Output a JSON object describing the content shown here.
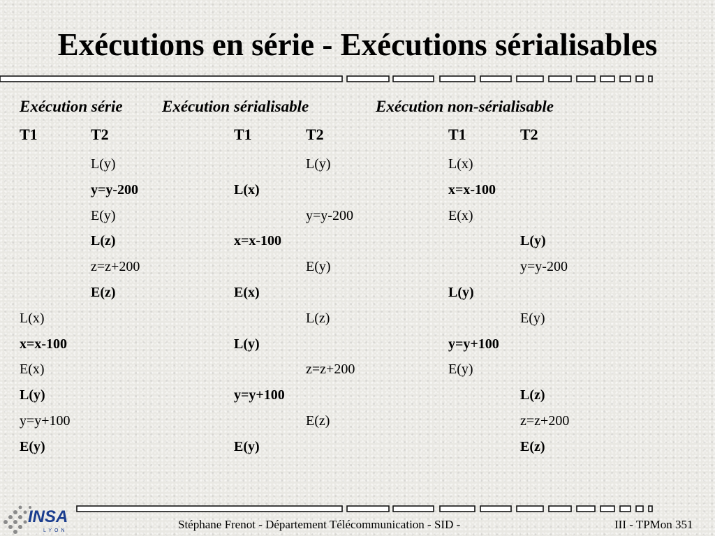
{
  "slide": {
    "title": "Exécutions en série - Exécutions sérialisables"
  },
  "sections": [
    {
      "heading": "Exécution série",
      "t1": "T1",
      "t2": "T2",
      "rows": [
        {
          "text": "L(y)",
          "col": 2,
          "bold": false
        },
        {
          "text": "y=y-200",
          "col": 2,
          "bold": true
        },
        {
          "text": "E(y)",
          "col": 2,
          "bold": false
        },
        {
          "text": "L(z)",
          "col": 2,
          "bold": true
        },
        {
          "text": "z=z+200",
          "col": 2,
          "bold": false
        },
        {
          "text": "E(z)",
          "col": 2,
          "bold": true
        },
        {
          "text": "L(x)",
          "col": 1,
          "bold": false
        },
        {
          "text": "x=x-100",
          "col": 1,
          "bold": true
        },
        {
          "text": "E(x)",
          "col": 1,
          "bold": false
        },
        {
          "text": "L(y)",
          "col": 1,
          "bold": true
        },
        {
          "text": "y=y+100",
          "col": 1,
          "bold": false
        },
        {
          "text": "E(y)",
          "col": 1,
          "bold": true
        }
      ]
    },
    {
      "heading": "Exécution sérialisable",
      "t1": "T1",
      "t2": "T2",
      "rows": [
        {
          "text": "L(y)",
          "col": 2,
          "bold": false
        },
        {
          "text": "L(x)",
          "col": 1,
          "bold": true
        },
        {
          "text": "y=y-200",
          "col": 2,
          "bold": false
        },
        {
          "text": "x=x-100",
          "col": 1,
          "bold": true
        },
        {
          "text": "E(y)",
          "col": 2,
          "bold": false
        },
        {
          "text": "E(x)",
          "col": 1,
          "bold": true
        },
        {
          "text": "L(z)",
          "col": 2,
          "bold": false
        },
        {
          "text": "L(y)",
          "col": 1,
          "bold": true
        },
        {
          "text": "z=z+200",
          "col": 2,
          "bold": false
        },
        {
          "text": "y=y+100",
          "col": 1,
          "bold": true
        },
        {
          "text": "E(z)",
          "col": 2,
          "bold": false
        },
        {
          "text": "E(y)",
          "col": 1,
          "bold": true
        }
      ]
    },
    {
      "heading": "Exécution non-sérialisable",
      "t1": "T1",
      "t2": "T2",
      "rows": [
        {
          "text": "L(x)",
          "col": 1,
          "bold": false
        },
        {
          "text": "x=x-100",
          "col": 1,
          "bold": true
        },
        {
          "text": "E(x)",
          "col": 1,
          "bold": false
        },
        {
          "text": "L(y)",
          "col": 2,
          "bold": true
        },
        {
          "text": "y=y-200",
          "col": 2,
          "bold": false
        },
        {
          "text": "L(y)",
          "col": 1,
          "bold": true
        },
        {
          "text": "E(y)",
          "col": 2,
          "bold": false
        },
        {
          "text": "y=y+100",
          "col": 1,
          "bold": true
        },
        {
          "text": "E(y)",
          "col": 1,
          "bold": false
        },
        {
          "text": "L(z)",
          "col": 2,
          "bold": true
        },
        {
          "text": "z=z+200",
          "col": 2,
          "bold": false
        },
        {
          "text": "E(z)",
          "col": 2,
          "bold": true
        }
      ]
    }
  ],
  "footer": {
    "author": "Stéphane Frenot - Département Télécommunication - SID -",
    "page": "III - TPMon 351"
  },
  "logo": {
    "text": "INSA",
    "subtext": "LYON",
    "color": "#1a3d8f"
  }
}
